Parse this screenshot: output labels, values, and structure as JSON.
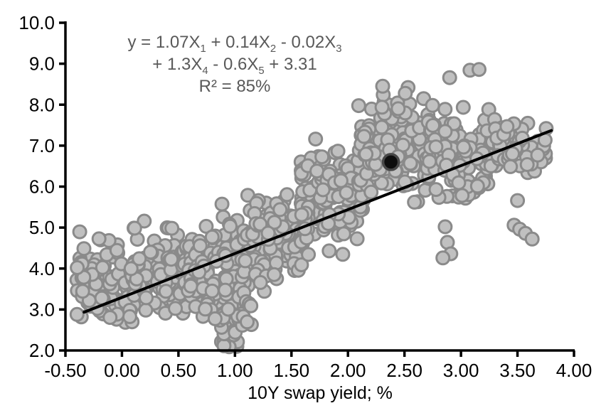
{
  "chart_data": {
    "type": "scatter",
    "title": "",
    "xlabel": "10Y swap yield; %",
    "ylabel": "",
    "xlim": [
      -0.5,
      4.0
    ],
    "ylim": [
      2.0,
      10.0
    ],
    "grid": false,
    "legend": false,
    "background_color": "#ffffff",
    "axis_color": "#000000",
    "x_ticks": {
      "values": [
        -0.5,
        0.0,
        0.5,
        1.0,
        1.5,
        2.0,
        2.5,
        3.0,
        3.5,
        4.0
      ],
      "labels": [
        "-0.50",
        "0.00",
        "0.50",
        "1.00",
        "1.50",
        "2.00",
        "2.50",
        "3.00",
        "3.50",
        "4.00"
      ]
    },
    "y_ticks": {
      "values": [
        2,
        3,
        4,
        5,
        6,
        7,
        8,
        9,
        10
      ],
      "labels": [
        "2.0",
        "3.0",
        "4.0",
        "5.0",
        "6.0",
        "7.0",
        "8.0",
        "9.0",
        "10.0"
      ]
    },
    "annotation": {
      "equation_plain": "y = 1.07X1 + 0.14X2 - 0.02X3 + 1.3X4 - 0.6X5 + 3.31",
      "r_squared": "R² = 85%",
      "text_color": "#595959",
      "lines": [
        {
          "segments": [
            {
              "text": "y = 1.07X"
            },
            {
              "text": "1",
              "sub": true
            },
            {
              "text": " + 0.14X"
            },
            {
              "text": "2",
              "sub": true
            },
            {
              "text": " - 0.02X"
            },
            {
              "text": "3",
              "sub": true
            }
          ]
        },
        {
          "segments": [
            {
              "text": "+ 1.3X"
            },
            {
              "text": "4",
              "sub": true
            },
            {
              "text": " - 0.6X"
            },
            {
              "text": "5",
              "sub": true
            },
            {
              "text": " + 3.31"
            }
          ]
        },
        {
          "segments": [
            {
              "text": "R² = 85%"
            }
          ]
        }
      ]
    },
    "trend_line": {
      "x1": -0.335,
      "y1": 2.935,
      "x2": 3.8,
      "y2": 7.37,
      "color": "#000000",
      "width": 4
    },
    "highlight_point": {
      "x": 2.38,
      "y": 6.6,
      "radius": 11,
      "fill": "#0d0d0d",
      "stroke": "#474747",
      "stroke_width": 3.5
    },
    "point_style": {
      "radius": 9,
      "fill": "#c0c0c0",
      "stroke": "#8a8a8a",
      "stroke_width": 3
    },
    "seed": 20240731,
    "outlier_points": [
      [
        2.9,
        8.66
      ],
      [
        3.08,
        8.84
      ],
      [
        3.16,
        8.86
      ],
      [
        3.5,
        5.66
      ],
      [
        3.47,
        5.06
      ],
      [
        3.52,
        4.96
      ],
      [
        3.57,
        4.86
      ],
      [
        3.63,
        4.72
      ],
      [
        2.86,
        5.02
      ],
      [
        2.88,
        4.64
      ],
      [
        2.91,
        4.36
      ],
      [
        2.84,
        4.26
      ]
    ],
    "distribution_clusters": [
      {
        "name": "left-blob-a",
        "n": 110,
        "x_range": [
          -0.4,
          0.12
        ],
        "y_mean": 3.6,
        "y_sd": 0.55,
        "y_clip": [
          2.58,
          4.9
        ]
      },
      {
        "name": "left-blob-b",
        "n": 110,
        "x_range": [
          0.08,
          0.58
        ],
        "y_mean": 3.85,
        "y_sd": 0.6,
        "y_clip": [
          2.7,
          5.3
        ]
      },
      {
        "name": "lower-mid",
        "n": 150,
        "x_range": [
          0.55,
          1.12
        ],
        "y_mean": 3.95,
        "y_sd": 0.6,
        "y_clip": [
          2.75,
          5.6
        ]
      },
      {
        "name": "down-spike",
        "n": 20,
        "x_range": [
          0.86,
          1.06
        ],
        "y_range": [
          2.05,
          3.0
        ]
      },
      {
        "name": "spike-bridge",
        "n": 12,
        "x_range": [
          0.8,
          1.15
        ],
        "y_range": [
          2.6,
          3.25
        ]
      },
      {
        "name": "mid-band",
        "n": 120,
        "x_range": [
          1.08,
          1.62
        ],
        "y_mean": 4.8,
        "y_sd": 0.5,
        "y_clip": [
          3.92,
          5.9
        ]
      },
      {
        "name": "mid-stragglers",
        "n": 6,
        "x_range": [
          1.1,
          1.4
        ],
        "y_range": [
          3.3,
          3.95
        ]
      },
      {
        "name": "rise-band",
        "n": 150,
        "x_range": [
          1.58,
          2.14
        ],
        "y_mean": 5.75,
        "y_sd": 0.6,
        "y_clip": [
          4.3,
          7.25
        ]
      },
      {
        "name": "core-a",
        "n": 150,
        "x_range": [
          2.08,
          2.72
        ],
        "y_mean": 6.85,
        "y_sd": 0.6,
        "y_clip": [
          5.35,
          8.4
        ]
      },
      {
        "name": "core-b",
        "n": 120,
        "x_range": [
          2.7,
          3.32
        ],
        "y_mean": 6.75,
        "y_sd": 0.55,
        "y_clip": [
          5.5,
          8.15
        ]
      },
      {
        "name": "top-column",
        "n": 12,
        "x_range": [
          2.3,
          2.54
        ],
        "y_range": [
          7.7,
          8.45
        ]
      },
      {
        "name": "right-tail",
        "n": 50,
        "x_range": [
          3.3,
          3.78
        ],
        "y_mean": 6.95,
        "y_sd": 0.33,
        "y_clip": [
          6.3,
          7.6
        ]
      }
    ]
  }
}
